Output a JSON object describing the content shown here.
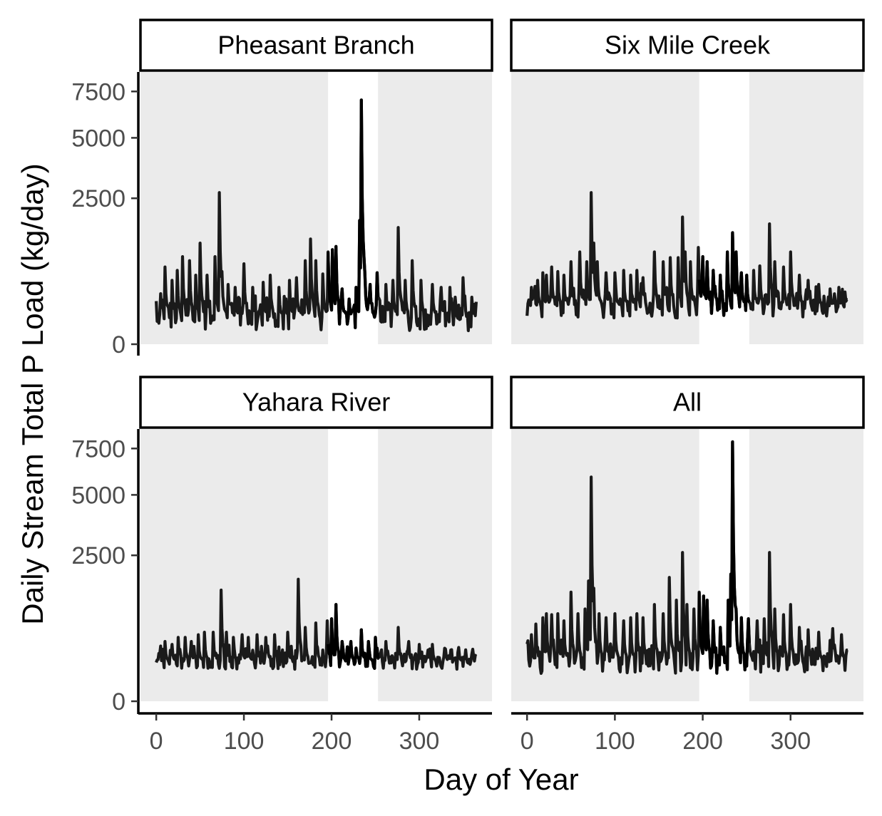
{
  "chart_data": {
    "type": "line",
    "layout": "2x2 facet grid",
    "xlabel": "Day of Year",
    "ylabel": "Daily Stream Total P Load (kg/day)",
    "x_ticks": [
      0,
      100,
      200,
      300
    ],
    "y_ticks": [
      0,
      2500,
      5000,
      7500
    ],
    "xlim": [
      -18,
      383
    ],
    "y_scale": "sqrt",
    "ylim": [
      0,
      8700
    ],
    "highlight_band": {
      "x_start": 196,
      "x_end": 253,
      "color": "#ffffff"
    },
    "panel_background": "#ebebeb",
    "line_color": "#1a1a1a",
    "panels": [
      {
        "strip": "Pheasant Branch",
        "baseline": 80,
        "noise": 60,
        "spikes": [
          [
            5,
            300
          ],
          [
            10,
            700
          ],
          [
            18,
            480
          ],
          [
            24,
            640
          ],
          [
            30,
            900
          ],
          [
            38,
            820
          ],
          [
            45,
            560
          ],
          [
            50,
            1200
          ],
          [
            58,
            560
          ],
          [
            67,
            900
          ],
          [
            72,
            2700
          ],
          [
            75,
            620
          ],
          [
            82,
            420
          ],
          [
            90,
            380
          ],
          [
            100,
            760
          ],
          [
            110,
            380
          ],
          [
            122,
            450
          ],
          [
            130,
            560
          ],
          [
            140,
            380
          ],
          [
            152,
            480
          ],
          [
            160,
            520
          ],
          [
            170,
            820
          ],
          [
            176,
            1300
          ],
          [
            182,
            820
          ],
          [
            190,
            580
          ],
          [
            196,
            1000
          ],
          [
            201,
            1050
          ],
          [
            205,
            1120
          ],
          [
            212,
            360
          ],
          [
            220,
            240
          ],
          [
            228,
            380
          ],
          [
            232,
            1800
          ],
          [
            234,
            7000
          ],
          [
            238,
            600
          ],
          [
            244,
            420
          ],
          [
            252,
            600
          ],
          [
            262,
            420
          ],
          [
            270,
            480
          ],
          [
            276,
            1600
          ],
          [
            284,
            480
          ],
          [
            292,
            820
          ],
          [
            302,
            480
          ],
          [
            315,
            420
          ],
          [
            325,
            380
          ],
          [
            335,
            380
          ],
          [
            350,
            520
          ],
          [
            360,
            260
          ]
        ]
      },
      {
        "strip": "Six Mile Creek",
        "baseline": 160,
        "noise": 80,
        "spikes": [
          [
            5,
            380
          ],
          [
            12,
            480
          ],
          [
            18,
            600
          ],
          [
            22,
            560
          ],
          [
            28,
            700
          ],
          [
            35,
            620
          ],
          [
            42,
            560
          ],
          [
            50,
            800
          ],
          [
            60,
            1000
          ],
          [
            68,
            800
          ],
          [
            73,
            2700
          ],
          [
            76,
            1200
          ],
          [
            80,
            800
          ],
          [
            90,
            600
          ],
          [
            100,
            600
          ],
          [
            110,
            640
          ],
          [
            118,
            560
          ],
          [
            125,
            640
          ],
          [
            132,
            520
          ],
          [
            145,
            1000
          ],
          [
            155,
            800
          ],
          [
            163,
            880
          ],
          [
            172,
            880
          ],
          [
            177,
            1900
          ],
          [
            180,
            1000
          ],
          [
            186,
            800
          ],
          [
            195,
            1100
          ],
          [
            200,
            900
          ],
          [
            205,
            800
          ],
          [
            212,
            640
          ],
          [
            220,
            560
          ],
          [
            228,
            1000
          ],
          [
            234,
            1460
          ],
          [
            238,
            1000
          ],
          [
            244,
            600
          ],
          [
            250,
            560
          ],
          [
            258,
            640
          ],
          [
            265,
            720
          ],
          [
            276,
            1700
          ],
          [
            282,
            800
          ],
          [
            292,
            700
          ],
          [
            300,
            1000
          ],
          [
            310,
            560
          ],
          [
            320,
            480
          ],
          [
            332,
            420
          ],
          [
            345,
            360
          ],
          [
            355,
            380
          ],
          [
            362,
            320
          ]
        ]
      },
      {
        "strip": "Yahara River",
        "baseline": 180,
        "noise": 60,
        "spikes": [
          [
            4,
            260
          ],
          [
            10,
            420
          ],
          [
            18,
            380
          ],
          [
            25,
            480
          ],
          [
            33,
            480
          ],
          [
            40,
            420
          ],
          [
            48,
            520
          ],
          [
            55,
            560
          ],
          [
            65,
            560
          ],
          [
            74,
            1450
          ],
          [
            80,
            560
          ],
          [
            88,
            480
          ],
          [
            98,
            520
          ],
          [
            105,
            480
          ],
          [
            115,
            520
          ],
          [
            125,
            480
          ],
          [
            135,
            520
          ],
          [
            150,
            560
          ],
          [
            162,
            1750
          ],
          [
            170,
            640
          ],
          [
            182,
            720
          ],
          [
            195,
            760
          ],
          [
            200,
            800
          ],
          [
            205,
            1100
          ],
          [
            212,
            420
          ],
          [
            222,
            420
          ],
          [
            234,
            600
          ],
          [
            242,
            420
          ],
          [
            250,
            480
          ],
          [
            262,
            420
          ],
          [
            276,
            640
          ],
          [
            288,
            420
          ],
          [
            300,
            380
          ],
          [
            315,
            380
          ],
          [
            330,
            320
          ],
          [
            345,
            340
          ],
          [
            360,
            260
          ]
        ]
      },
      {
        "strip": "All",
        "baseline": 180,
        "noise": 90,
        "spikes": [
          [
            5,
            520
          ],
          [
            10,
            700
          ],
          [
            18,
            820
          ],
          [
            22,
            900
          ],
          [
            28,
            880
          ],
          [
            35,
            900
          ],
          [
            42,
            760
          ],
          [
            50,
            1400
          ],
          [
            58,
            900
          ],
          [
            66,
            1000
          ],
          [
            70,
            1700
          ],
          [
            73,
            5900
          ],
          [
            76,
            1500
          ],
          [
            82,
            900
          ],
          [
            90,
            820
          ],
          [
            100,
            900
          ],
          [
            110,
            760
          ],
          [
            118,
            820
          ],
          [
            125,
            900
          ],
          [
            132,
            820
          ],
          [
            145,
            1100
          ],
          [
            155,
            900
          ],
          [
            162,
            1800
          ],
          [
            170,
            1200
          ],
          [
            177,
            2600
          ],
          [
            182,
            1100
          ],
          [
            190,
            1000
          ],
          [
            196,
            1400
          ],
          [
            201,
            1300
          ],
          [
            205,
            1200
          ],
          [
            212,
            760
          ],
          [
            220,
            640
          ],
          [
            229,
            1200
          ],
          [
            232,
            1900
          ],
          [
            234,
            7900
          ],
          [
            238,
            1000
          ],
          [
            244,
            820
          ],
          [
            252,
            800
          ],
          [
            262,
            760
          ],
          [
            270,
            800
          ],
          [
            276,
            2600
          ],
          [
            282,
            1000
          ],
          [
            292,
            880
          ],
          [
            300,
            1100
          ],
          [
            310,
            640
          ],
          [
            320,
            600
          ],
          [
            332,
            560
          ],
          [
            348,
            620
          ],
          [
            358,
            520
          ]
        ]
      }
    ]
  }
}
